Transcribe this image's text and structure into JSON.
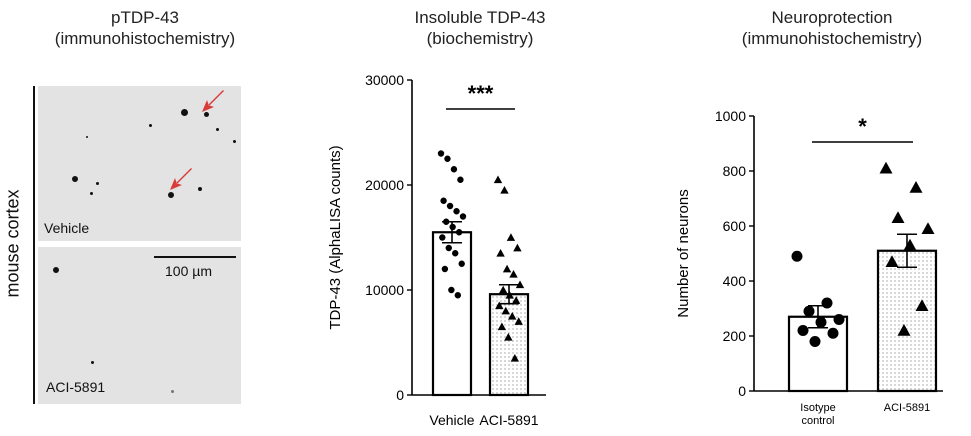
{
  "panelA": {
    "title_line1": "pTDP-43",
    "title_line2": "(immunohistochemistry)",
    "side_label": "mouse cortex",
    "top_label": "Vehicle",
    "bottom_label": "ACI-5891",
    "scale_bar_label": "100 µm"
  },
  "panelB": {
    "title_line1": "Insoluble TDP-43",
    "title_line2": "(biochemistry)",
    "significance": "***"
  },
  "panelC": {
    "title_line1": "Neuroprotection",
    "title_line2": "(immunohistochemistry)",
    "significance": "*"
  },
  "colors": {
    "arrow": "#d93a3a",
    "bar_stroke": "#000000",
    "bar_fill": "#ffffff"
  },
  "chart_data": [
    {
      "type": "bar",
      "ylabel": "TDP-43 (AlphaLISA counts)",
      "categories": [
        "Vehicle",
        "ACI-5891"
      ],
      "ylim": [
        0,
        30000
      ],
      "yticks": [
        "0",
        "10000",
        "20000",
        "30000"
      ],
      "ytick_values": [
        0,
        10000,
        20000,
        30000
      ],
      "series": [
        {
          "values": [
            15500,
            9600
          ],
          "sem": [
            1000,
            900
          ],
          "points": [
            [
              23000,
              22500,
              21500,
              20500,
              18500,
              18000,
              17500,
              17000,
              16500,
              16000,
              15500,
              15000,
              14000,
              13500,
              12500,
              12000,
              10000,
              9500
            ],
            [
              20500,
              19500,
              15000,
              14000,
              13500,
              12000,
              11500,
              10500,
              10000,
              9500,
              9000,
              8500,
              8000,
              7500,
              7000,
              6500,
              5500,
              3500
            ]
          ],
          "markers": [
            "circle",
            "triangle"
          ],
          "fill": [
            "white",
            "dotted"
          ]
        }
      ]
    },
    {
      "type": "bar",
      "ylabel": "Number of neurons",
      "categories": [
        "Isotype control",
        "ACI-5891"
      ],
      "ylim": [
        0,
        1000
      ],
      "yticks": [
        "0",
        "200",
        "400",
        "600",
        "800",
        "1000"
      ],
      "ytick_values": [
        0,
        200,
        400,
        600,
        800,
        1000
      ],
      "series": [
        {
          "values": [
            270,
            510
          ],
          "sem": [
            40,
            60
          ],
          "points": [
            [
              490,
              320,
              290,
              260,
              250,
              220,
              210,
              180
            ],
            [
              810,
              740,
              630,
              590,
              530,
              470,
              310,
              220
            ]
          ],
          "markers": [
            "circle",
            "triangle"
          ],
          "fill": [
            "white",
            "dotted"
          ]
        }
      ]
    }
  ]
}
